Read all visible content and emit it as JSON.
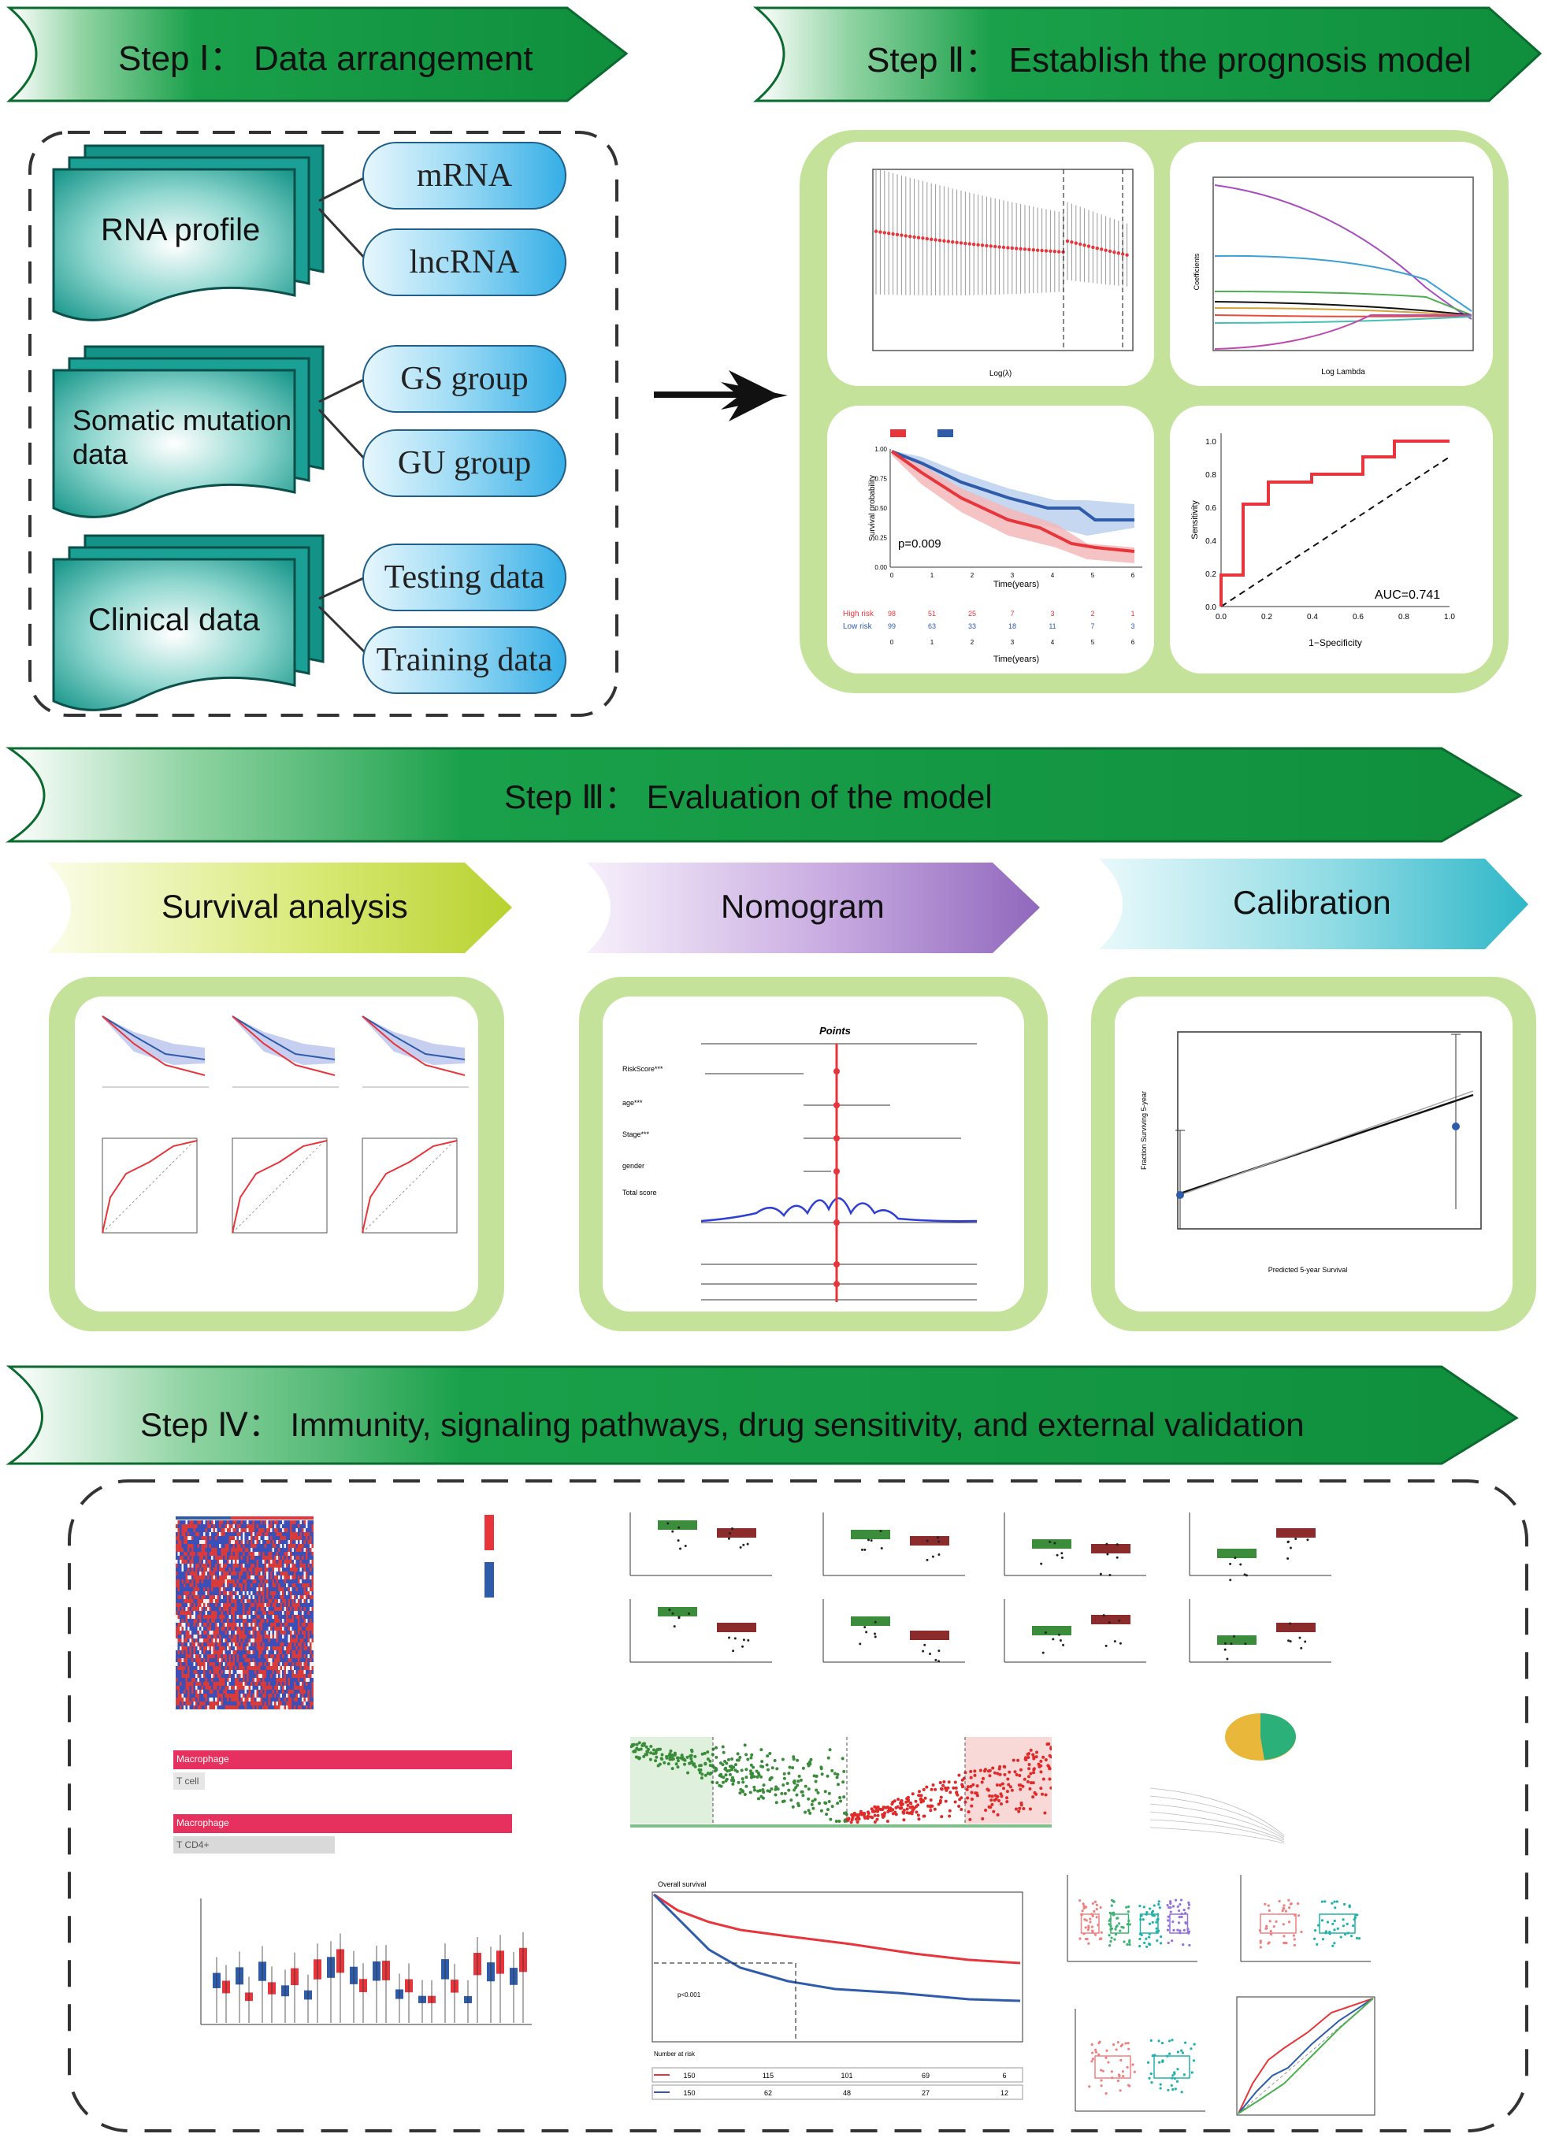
{
  "step1": {
    "title": "Step Ⅰ： Data arrangement"
  },
  "step2": {
    "title": "Step Ⅱ： Establish the prognosis model"
  },
  "step3": {
    "title": "Step Ⅲ： Evaluation of the model"
  },
  "step4": {
    "title": "Step Ⅳ： Immunity, signaling pathways, drug sensitivity, and external validation"
  },
  "data_arrangement": {
    "groups": [
      {
        "doc": "RNA profile",
        "items": [
          "mRNA",
          "lncRNA"
        ]
      },
      {
        "doc": "Somatic mutation data",
        "doc_line1": "Somatic mutation",
        "doc_line2": "data",
        "items": [
          "GS group",
          "GU group"
        ]
      },
      {
        "doc": "Clinical  data",
        "items": [
          "Testing data",
          "Training data"
        ]
      }
    ]
  },
  "prognosis_model": {
    "km": {
      "pvalue": "p=0.009",
      "xlabel": "Time(years)",
      "ylabel": "Survival probability",
      "risk_rows": [
        "High risk",
        "Low risk"
      ],
      "high_counts": [
        "98",
        "51",
        "25",
        "7",
        "3",
        "2",
        "1"
      ],
      "low_counts": [
        "99",
        "63",
        "33",
        "18",
        "11",
        "7",
        "3"
      ],
      "ticks": [
        "0",
        "1",
        "2",
        "3",
        "4",
        "5",
        "6"
      ],
      "yticks": [
        "1.00",
        "0.75",
        "0.50",
        "0.25",
        "0.00"
      ]
    },
    "roc": {
      "auc": "AUC=0.741",
      "xlabel": "1−Specificity",
      "ylabel": "Sensitivity",
      "ticks": [
        "0.0",
        "0.2",
        "0.4",
        "0.6",
        "0.8",
        "1.0"
      ]
    },
    "lasso_cv": {
      "xlabel": "Log(λ)"
    },
    "lasso_path": {
      "xlabel": "Log Lambda",
      "ylabel": "Coefficients"
    }
  },
  "evaluation": {
    "tabs": [
      "Survival analysis",
      "Nomogram",
      "Calibration"
    ],
    "nomogram": {
      "title": "Points",
      "rows": [
        "RiskScore***",
        "age***",
        "Stage***",
        "gender",
        "Total score"
      ]
    },
    "calibration": {
      "xlabel": "Predicted  5-year Survival",
      "ylabel": "Fraction Surviving 5-year"
    }
  },
  "immunity": {
    "bars": [
      "Macrophage",
      "T cell",
      "Macrophage",
      "T CD4+"
    ],
    "survival_title": "Overall survival",
    "survival_p": "p<0.001",
    "survival_table_title": "Number at risk",
    "survival_table": [
      [
        "150",
        "115",
        "101",
        "69",
        "6"
      ],
      [
        "150",
        "62",
        "48",
        "27",
        "12"
      ]
    ]
  },
  "colors": {
    "banner_green": "#169a47",
    "panel_green": "#c5e29b",
    "doc_teal": "#1fa29a",
    "pill_blue": "#36aee6",
    "high_risk": "#e8343b",
    "low_risk": "#2f5bab",
    "survival_tab": "#c9de4f",
    "nomogram_tab": "#a07cc7",
    "calibration_tab": "#3fc0cf"
  }
}
